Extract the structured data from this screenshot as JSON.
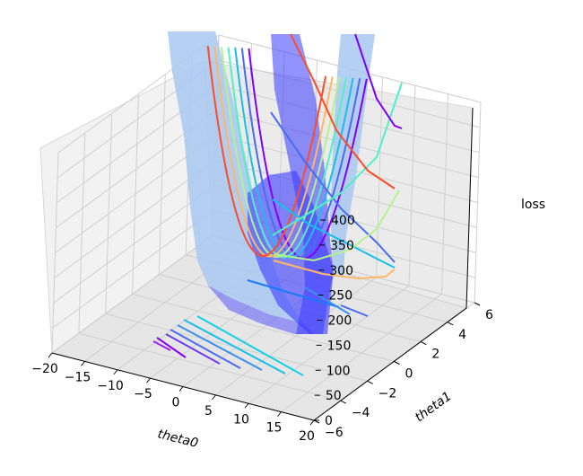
{
  "chart_data": {
    "type": "surface3d",
    "title": "",
    "xlabel": "theta0",
    "ylabel": "theta1",
    "zlabel": "loss",
    "x_ticks": [
      -20,
      -15,
      -10,
      -5,
      0,
      5,
      10,
      15,
      20
    ],
    "y_ticks": [
      -6,
      -4,
      -2,
      0,
      2,
      4,
      6
    ],
    "z_ticks": [
      0,
      50,
      100,
      150,
      200,
      250,
      300,
      350,
      400
    ],
    "xlim": [
      -20,
      20
    ],
    "ylim": [
      -6,
      6
    ],
    "zlim": [
      0,
      400
    ],
    "grid": true,
    "colormap": "rainbow",
    "surface_colors": [
      "#3a3aff",
      "#a8c8f0"
    ],
    "series": [
      {
        "kind": "surface",
        "color": "#4a4aff"
      },
      {
        "kind": "contour-curves-left-wall",
        "count": 7,
        "vertex_theta0": -6,
        "vertex_loss": 5
      },
      {
        "kind": "contour-curves-right-wall",
        "count": 7
      },
      {
        "kind": "contour-lines-floor",
        "count": 10
      }
    ]
  }
}
